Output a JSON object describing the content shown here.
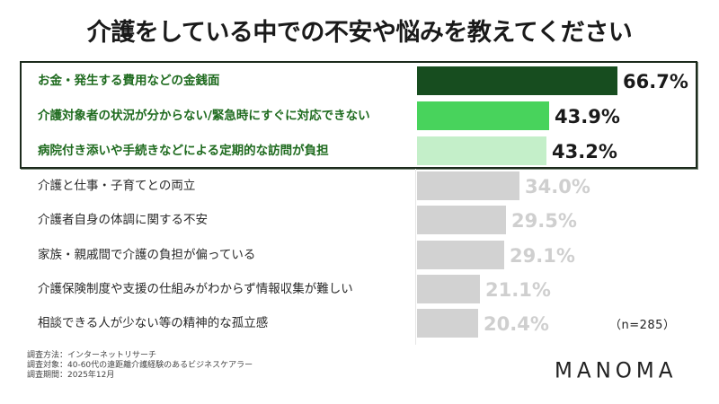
{
  "title": "介護をしている中での不安や悩みを教えてください",
  "sample_size_label": "（n=285）",
  "footnotes": [
    "調査方法：インターネットリサーチ",
    "調査対象：40-60代の遠距離介護経験のあるビジネスケアラー",
    "調査期間：2025年12月"
  ],
  "logo": "MANOMA",
  "colors": {
    "bar_top1": "#174d1f",
    "bar_top2": "#48d35c",
    "bar_top3": "#c4efc9",
    "bar_rest": "#d2d2d2",
    "label_top": "#1f6b1f",
    "value_rest": "#cfcfcf",
    "box_border": "#1c2a1c"
  },
  "rows": [
    {
      "label": "お金・発生する費用などの金銭面",
      "value_text": "66.7%"
    },
    {
      "label": "介護対象者の状況が分からない/緊急時にすぐに対応できない",
      "value_text": "43.9%"
    },
    {
      "label": "病院付き添いや手続きなどによる定期的な訪問が負担",
      "value_text": "43.2%"
    },
    {
      "label": "介護と仕事・子育てとの両立",
      "value_text": "34.0%"
    },
    {
      "label": "介護者自身の体調に関する不安",
      "value_text": "29.5%"
    },
    {
      "label": "家族・親戚間で介護の負担が偏っている",
      "value_text": "29.1%"
    },
    {
      "label": "介護保険制度や支援の仕組みがわからず情報収集が難しい",
      "value_text": "21.1%"
    },
    {
      "label": "相談できる人が少ない等の精神的な孤立感",
      "value_text": "20.4%"
    }
  ],
  "chart_data": {
    "type": "bar",
    "orientation": "horizontal",
    "title": "介護をしている中での不安や悩みを教えてください",
    "categories": [
      "お金・発生する費用などの金銭面",
      "介護対象者の状況が分からない/緊急時にすぐに対応できない",
      "病院付き添いや手続きなどによる定期的な訪問が負担",
      "介護と仕事・子育てとの両立",
      "介護者自身の体調に関する不安",
      "家族・親戚間で介護の負担が偏っている",
      "介護保険制度や支援の仕組みがわからず情報収集が難しい",
      "相談できる人が少ない等の精神的な孤立感"
    ],
    "values": [
      66.7,
      43.9,
      43.2,
      34.0,
      29.5,
      29.1,
      21.1,
      20.4
    ],
    "unit": "%",
    "xlabel": "",
    "ylabel": "",
    "annotations": [
      "（n=285）"
    ],
    "highlighted_top_n": 3,
    "grid": false,
    "legend": null
  }
}
